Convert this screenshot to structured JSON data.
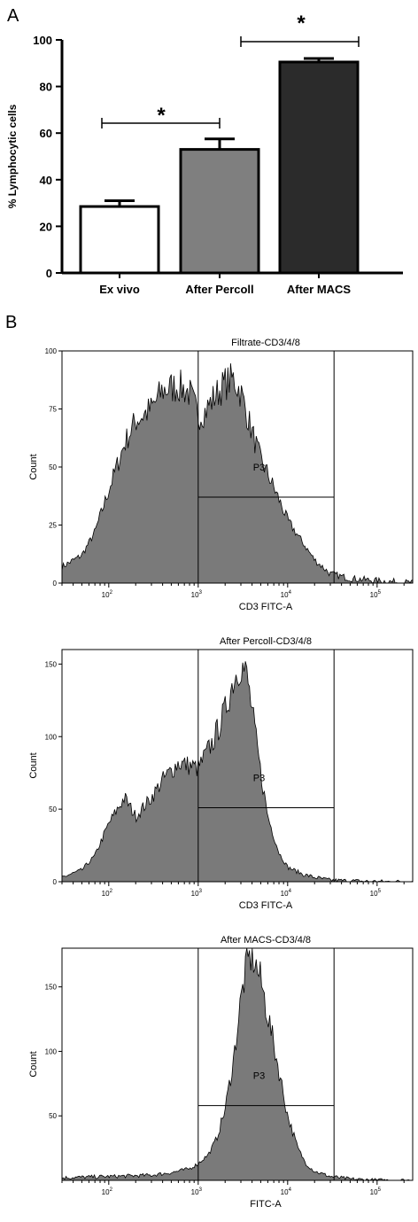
{
  "chart_data": [
    {
      "panel_label": "A",
      "type": "bar",
      "ylabel": "% Lymphocytic cells",
      "ylim": [
        0,
        100
      ],
      "yticks": [
        "0",
        "20",
        "40",
        "60",
        "80",
        "100"
      ],
      "categories": [
        "Ex vivo",
        "After Percoll",
        "After MACS"
      ],
      "values": [
        28.5,
        53,
        90.5
      ],
      "errors": [
        2.5,
        4.5,
        1.5
      ],
      "bar_colors": [
        "#ffffff",
        "#7f7f7f",
        "#2b2b2b"
      ],
      "annotations": [
        {
          "text": "*",
          "from": "Ex vivo",
          "to": "After Percoll"
        },
        {
          "text": "*",
          "from": "After Percoll",
          "to": "After MACS"
        }
      ]
    },
    {
      "panel_label": "B",
      "type": "area",
      "title": "Filtrate-CD3/4/8",
      "xlabel": "CD3 FITC-A",
      "ylabel": "Count",
      "xscale": "log",
      "xlim": [
        30,
        250000
      ],
      "ylim": [
        0,
        100
      ],
      "xticks": [
        {
          "base": "10",
          "exp": "2"
        },
        {
          "base": "10",
          "exp": "3"
        },
        {
          "base": "10",
          "exp": "4"
        },
        {
          "base": "10",
          "exp": "5"
        }
      ],
      "yticks": [
        "0",
        "25",
        "50",
        "75",
        "100"
      ],
      "gate": {
        "label": "P3",
        "x": [
          1000,
          33000
        ],
        "level": 37
      },
      "series": [
        {
          "x": [
            30,
            50,
            70,
            100,
            150,
            200,
            300,
            400,
            600,
            800,
            1000,
            1200,
            1500,
            2000,
            2500,
            3000,
            4000,
            5000,
            6000,
            8000,
            10000,
            15000,
            20000,
            30000,
            50000,
            100000,
            250000
          ],
          "y": [
            7,
            12,
            22,
            40,
            60,
            70,
            75,
            83,
            85,
            82,
            72,
            74,
            80,
            86,
            88,
            82,
            65,
            53,
            47,
            36,
            27,
            17,
            10,
            4,
            2,
            1,
            0
          ]
        }
      ]
    },
    {
      "type": "area",
      "title": "After Percoll-CD3/4/8",
      "xlabel": "CD3 FITC-A",
      "ylabel": "Count",
      "xscale": "log",
      "xlim": [
        30,
        250000
      ],
      "ylim": [
        0,
        160
      ],
      "xticks": [
        {
          "base": "10",
          "exp": "2"
        },
        {
          "base": "10",
          "exp": "3"
        },
        {
          "base": "10",
          "exp": "4"
        },
        {
          "base": "10",
          "exp": "5"
        }
      ],
      "yticks": [
        "0",
        "50",
        "100",
        "150"
      ],
      "gate": {
        "label": "P3",
        "x": [
          1000,
          33000
        ],
        "level": 51
      },
      "series": [
        {
          "x": [
            30,
            50,
            70,
            100,
            150,
            200,
            300,
            400,
            600,
            800,
            1000,
            1500,
            2000,
            2500,
            3000,
            3500,
            4000,
            5000,
            6000,
            8000,
            10000,
            15000,
            20000,
            30000,
            100000,
            250000
          ],
          "y": [
            3,
            8,
            18,
            40,
            58,
            45,
            58,
            70,
            82,
            80,
            78,
            98,
            118,
            140,
            150,
            142,
            118,
            75,
            45,
            20,
            10,
            5,
            3,
            1,
            0,
            0
          ]
        }
      ]
    },
    {
      "type": "area",
      "title": "After MACS-CD3/4/8",
      "xlabel": "FITC-A",
      "ylabel": "Count",
      "xscale": "log",
      "xlim": [
        30,
        250000
      ],
      "ylim": [
        0,
        180
      ],
      "xticks": [
        {
          "base": "10",
          "exp": "2"
        },
        {
          "base": "10",
          "exp": "3"
        },
        {
          "base": "10",
          "exp": "4"
        },
        {
          "base": "10",
          "exp": "5"
        }
      ],
      "yticks": [
        "50",
        "100",
        "150"
      ],
      "gate": {
        "label": "P3",
        "x": [
          1000,
          33000
        ],
        "level": 58
      },
      "series": [
        {
          "x": [
            30,
            100,
            300,
            500,
            800,
            1000,
            1300,
            1600,
            2000,
            2500,
            3000,
            3500,
            4000,
            5000,
            6000,
            8000,
            10000,
            13000,
            16000,
            20000,
            30000,
            50000,
            100000,
            250000
          ],
          "y": [
            2,
            3,
            4,
            6,
            9,
            13,
            20,
            32,
            55,
            95,
            140,
            168,
            175,
            155,
            128,
            85,
            50,
            25,
            13,
            7,
            3,
            1,
            0,
            0
          ]
        }
      ]
    }
  ]
}
